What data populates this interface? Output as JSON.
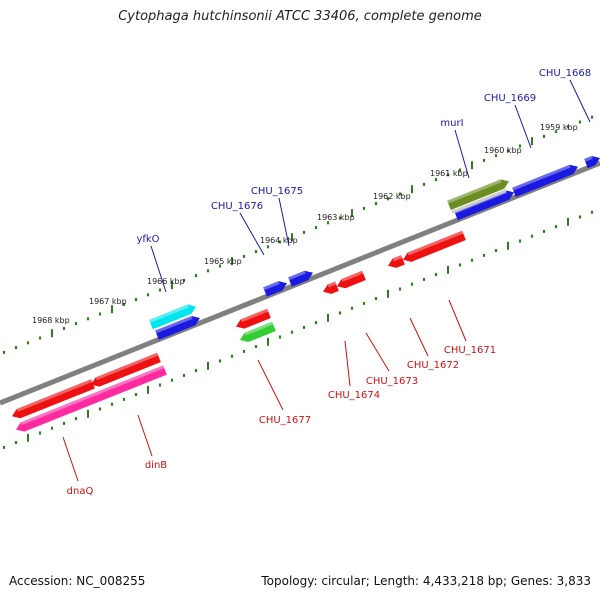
{
  "title": "Cytophaga hutchinsonii ATCC 33406, complete genome",
  "footer": {
    "accession": "Accession: NC_008255",
    "summary": "Topology: circular; Length: 4,433,218 bp; Genes: 3,833"
  },
  "colors": {
    "backbone": "#808080",
    "tick": "#2e7d1e",
    "label_forward": "#1a1aaa",
    "label_reverse": "#cc1111"
  },
  "kbp_ticks": [
    "1959 kbp",
    "1960 kbp",
    "1961 kbp",
    "1962 kbp",
    "1963 kbp",
    "1964 kbp",
    "1965 kbp",
    "1966 kbp",
    "1967 kbp",
    "1968 kbp"
  ],
  "genes_forward": [
    {
      "name": "CHU_1668",
      "color": "#1a1ae0"
    },
    {
      "name": "CHU_1669",
      "color": "#1a1ae0"
    },
    {
      "name": "murI",
      "color": "#1a1ae0"
    },
    {
      "name": "",
      "color": "#6b8e23"
    },
    {
      "name": "CHU_1675",
      "color": "#1a1ae0"
    },
    {
      "name": "CHU_1676",
      "color": "#1a1ae0"
    },
    {
      "name": "yfkO",
      "color": "#1a1ae0"
    },
    {
      "name": "",
      "color": "#00e5ee"
    }
  ],
  "genes_reverse": [
    {
      "name": "CHU_1671",
      "color": "#ee1111"
    },
    {
      "name": "CHU_1672",
      "color": "#ee1111"
    },
    {
      "name": "CHU_1673",
      "color": "#ee1111"
    },
    {
      "name": "CHU_1674",
      "color": "#ee1111"
    },
    {
      "name": "CHU_1677",
      "color": "#ee1111"
    },
    {
      "name": "",
      "color": "#33cc33"
    },
    {
      "name": "dinB",
      "color": "#ee1111"
    },
    {
      "name": "dnaQ",
      "color": "#ee1111"
    },
    {
      "name": "",
      "color": "#ff2aa0"
    }
  ]
}
